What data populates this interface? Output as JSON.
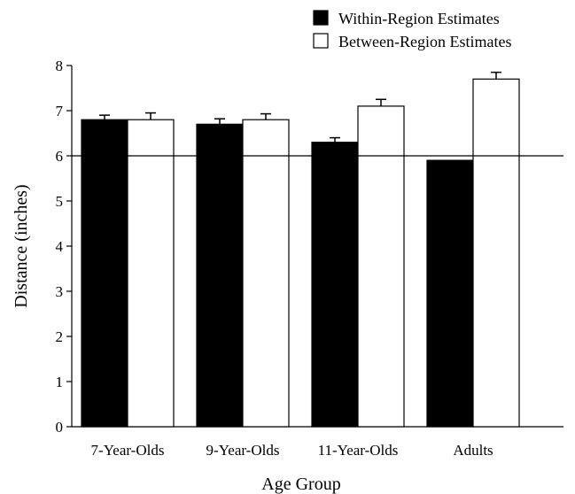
{
  "chart_data": {
    "type": "bar",
    "title": "",
    "xlabel": "Age Group",
    "ylabel": "Distance (inches)",
    "ylim": [
      0,
      8
    ],
    "yticks": [
      "0",
      "1",
      "2",
      "3",
      "4",
      "5",
      "6",
      "7",
      "8"
    ],
    "categories": [
      "7-Year-Olds",
      "9-Year-Olds",
      "11-Year-Olds",
      "Adults"
    ],
    "series": [
      {
        "name": "Within-Region Estimates",
        "color": "#000000",
        "values": [
          6.8,
          6.7,
          6.3,
          5.9
        ],
        "errors": [
          0.1,
          0.12,
          0.1,
          null
        ]
      },
      {
        "name": "Between-Region Estimates",
        "color": "#ffffff",
        "values": [
          6.8,
          6.8,
          7.1,
          7.7
        ],
        "errors": [
          0.15,
          0.13,
          0.15,
          0.15
        ]
      }
    ],
    "reference_line": 6,
    "legend_position": "top-right",
    "grid": false
  }
}
